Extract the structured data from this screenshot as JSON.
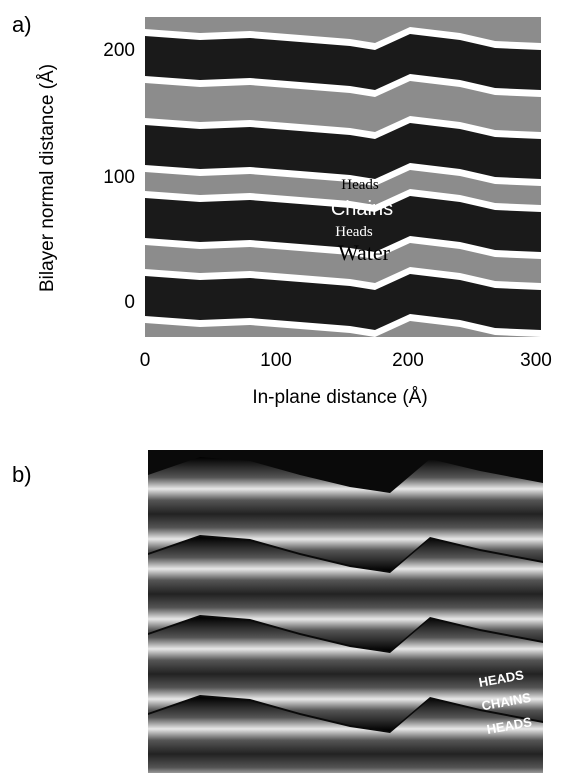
{
  "panel_a": {
    "label": "a)",
    "xlabel": "In-plane distance (Å)",
    "ylabel": "Bilayer normal distance (Å)",
    "xticks": [
      "0",
      "100",
      "200",
      "300"
    ],
    "yticks": [
      "0",
      "100",
      "200"
    ],
    "annotations": {
      "heads_top": "Heads",
      "chains": "Chains",
      "heads_bottom": "Heads",
      "water": "Water"
    },
    "colors": {
      "water": "#8c8c8c",
      "heads": "#ffffff",
      "chains": "#1a1a1a"
    }
  },
  "panel_b": {
    "label": "b)",
    "annotations": {
      "heads_top": "HEADS",
      "chains": "CHAINS",
      "heads_bottom": "HEADS"
    }
  }
}
